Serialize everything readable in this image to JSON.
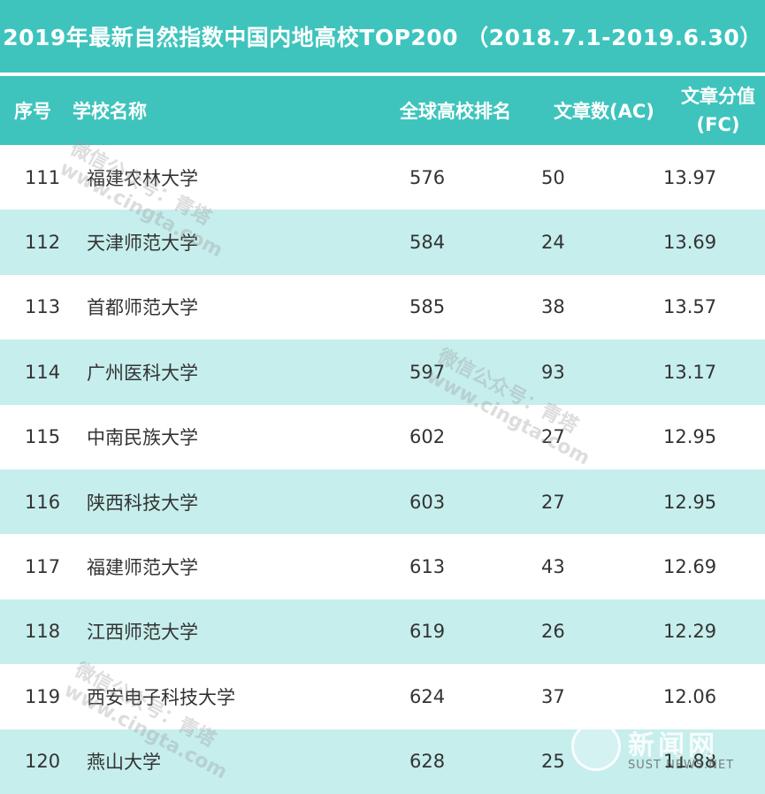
{
  "title": "2019年最新自然指数中国内地高校TOP200 （2018.7.1-2019.6.30）",
  "header": {
    "seq": "序号",
    "name": "学校名称",
    "global_rank": "全球高校排名",
    "ac": "文章数(AC)",
    "fc_line1": "文章分值",
    "fc_line2": "(FC)"
  },
  "rows": [
    {
      "seq": "111",
      "name": "福建农林大学",
      "rank": "576",
      "ac": "50",
      "fc": "13.97"
    },
    {
      "seq": "112",
      "name": "天津师范大学",
      "rank": "584",
      "ac": "24",
      "fc": "13.69"
    },
    {
      "seq": "113",
      "name": "首都师范大学",
      "rank": "585",
      "ac": "38",
      "fc": "13.57"
    },
    {
      "seq": "114",
      "name": "广州医科大学",
      "rank": "597",
      "ac": "93",
      "fc": "13.17"
    },
    {
      "seq": "115",
      "name": "中南民族大学",
      "rank": "602",
      "ac": "27",
      "fc": "12.95"
    },
    {
      "seq": "116",
      "name": "陕西科技大学",
      "rank": "603",
      "ac": "27",
      "fc": "12.95"
    },
    {
      "seq": "117",
      "name": "福建师范大学",
      "rank": "613",
      "ac": "43",
      "fc": "12.69"
    },
    {
      "seq": "118",
      "name": "江西师范大学",
      "rank": "619",
      "ac": "26",
      "fc": "12.29"
    },
    {
      "seq": "119",
      "name": "西安电子科技大学",
      "rank": "624",
      "ac": "37",
      "fc": "12.06"
    },
    {
      "seq": "120",
      "name": "燕山大学",
      "rank": "628",
      "ac": "25",
      "fc": "11.88"
    }
  ],
  "watermark": {
    "line1": "微信公众号：青塔",
    "line2": "www.cingta.com"
  },
  "logo": {
    "text": "新闻网",
    "sub": "SUST NEWS.NET"
  },
  "colors": {
    "header_bg": "#3ec4bd",
    "stripe_bg": "#c6eeec",
    "text": "#333333"
  }
}
